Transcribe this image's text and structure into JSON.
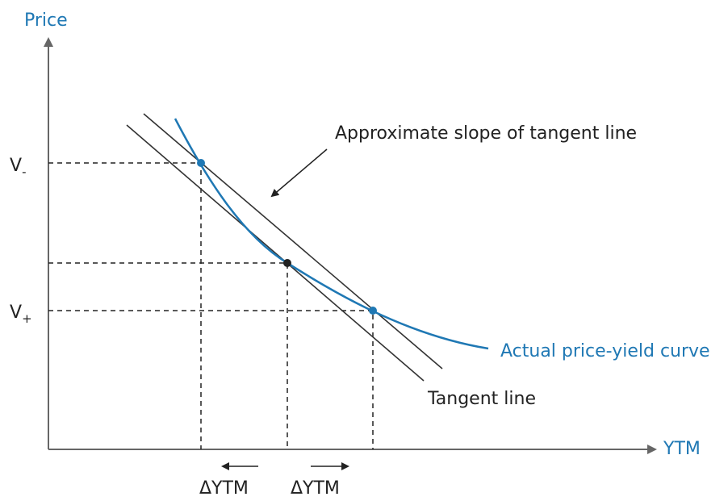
{
  "axes": {
    "y_label": "Price",
    "x_label": "YTM"
  },
  "levels": [
    {
      "label": "V",
      "subscript": "-"
    },
    {
      "label": "V",
      "subscript": "+"
    }
  ],
  "annotations": {
    "secant": "Approximate slope of tangent line",
    "curve": "Actual price-yield curve",
    "tangent": "Tangent line"
  },
  "delta_labels": [
    "ΔYTM",
    "ΔYTM"
  ]
}
